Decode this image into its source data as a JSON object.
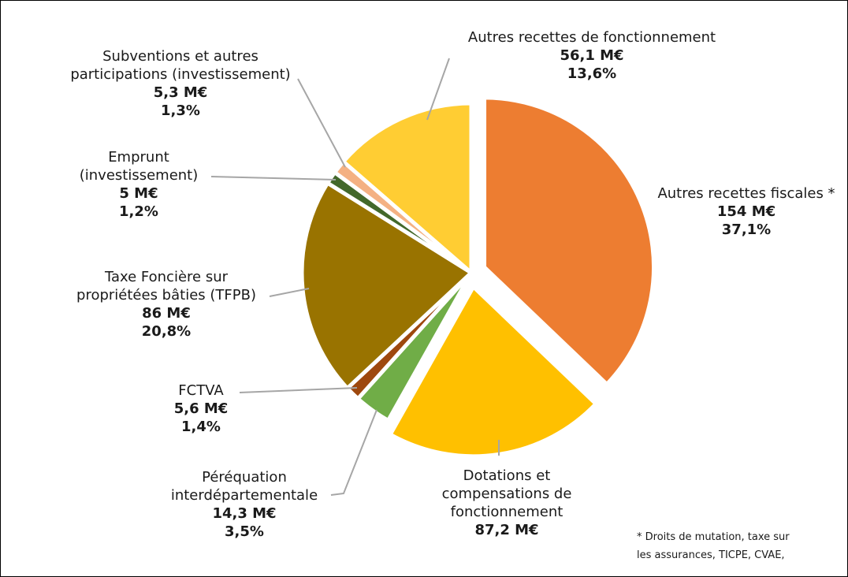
{
  "chart_data": {
    "type": "pie",
    "title": "",
    "slices": [
      {
        "label_lines": [
          "Autres recettes fiscales *"
        ],
        "value": "154 M€",
        "percent": "37,1%",
        "pct": 37.1,
        "color": "#ED7D31",
        "exploded": true
      },
      {
        "label_lines": [
          "Dotations et",
          "compensations de",
          "fonctionnement"
        ],
        "value": "87,2 M€",
        "percent": "",
        "pct": 21.0,
        "color": "#FFC000",
        "exploded": true
      },
      {
        "label_lines": [
          "Péréquation",
          "interdépartementale"
        ],
        "value": "14,3 M€",
        "percent": "3,5%",
        "pct": 3.5,
        "color": "#70AD47",
        "exploded": false
      },
      {
        "label_lines": [
          "FCTVA"
        ],
        "value": "5,6 M€",
        "percent": "1,4%",
        "pct": 1.4,
        "color": "#9E480E",
        "exploded": false
      },
      {
        "label_lines": [
          "Taxe Foncière sur",
          "propriétées bâties (TFPB)"
        ],
        "value": "86 M€",
        "percent": "20,8%",
        "pct": 20.8,
        "color": "#997300",
        "exploded": false
      },
      {
        "label_lines": [
          "Emprunt",
          "(investissement)"
        ],
        "value": "5 M€",
        "percent": "1,2%",
        "pct": 1.2,
        "color": "#43682B",
        "exploded": false
      },
      {
        "label_lines": [
          "Subventions et autres",
          "participations (investissement)"
        ],
        "value": "5,3 M€",
        "percent": "1,3%",
        "pct": 1.3,
        "color": "#F4B183",
        "exploded": false
      },
      {
        "label_lines": [
          "Autres recettes de fonctionnement"
        ],
        "value": "56,1 M€",
        "percent": "13,6%",
        "pct": 13.6,
        "color": "#FFCD33",
        "exploded": false
      }
    ],
    "footnote": [
      "* Droits de mutation, taxe sur",
      "les assurances, TICPE, CVAE,"
    ],
    "leader_line_color": "#A6A6A6"
  }
}
